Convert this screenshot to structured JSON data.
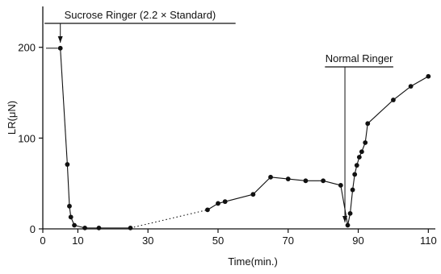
{
  "colors": {
    "ink": "#111111",
    "background": "#ffffff"
  },
  "chart_data": {
    "type": "line",
    "xlabel": "Time(min.)",
    "ylabel": "LR(μN)",
    "xlim": [
      0,
      112
    ],
    "ylim": [
      0,
      245
    ],
    "x_ticks": [
      0,
      10,
      30,
      50,
      70,
      90,
      110
    ],
    "y_ticks": [
      0,
      100,
      200
    ],
    "grid": false,
    "legend": "none",
    "series": [
      {
        "points": [
          [
            5,
            199
          ],
          [
            7,
            71
          ],
          [
            7.6,
            25
          ],
          [
            8,
            13
          ],
          [
            9,
            4
          ],
          [
            12,
            1
          ],
          [
            16,
            1
          ],
          [
            25,
            1
          ],
          [
            47,
            21
          ],
          [
            50,
            28
          ],
          [
            52,
            30
          ],
          [
            60,
            38
          ],
          [
            65,
            57
          ],
          [
            70,
            55
          ],
          [
            75,
            53
          ],
          [
            80,
            53
          ],
          [
            85,
            48
          ],
          [
            87,
            4
          ],
          [
            87.7,
            17
          ],
          [
            88.4,
            43
          ],
          [
            89,
            60
          ],
          [
            89.6,
            70
          ],
          [
            90.3,
            79
          ],
          [
            91,
            85
          ],
          [
            92,
            95
          ],
          [
            92.7,
            116
          ],
          [
            100,
            142
          ],
          [
            105,
            157
          ],
          [
            110,
            168
          ]
        ],
        "dotted_segments": [
          [
            25,
            47
          ]
        ]
      }
    ],
    "annotations": [
      {
        "text": "Sucrose Ringer (2.2 × Standard)",
        "x_start": 0.5,
        "x_end": 55,
        "arrow_x": 5,
        "prefix_mark_y": 199
      },
      {
        "text": "Normal Ringer",
        "x_start": 80.5,
        "x_end": 100,
        "arrow_x": 86.2
      }
    ]
  }
}
